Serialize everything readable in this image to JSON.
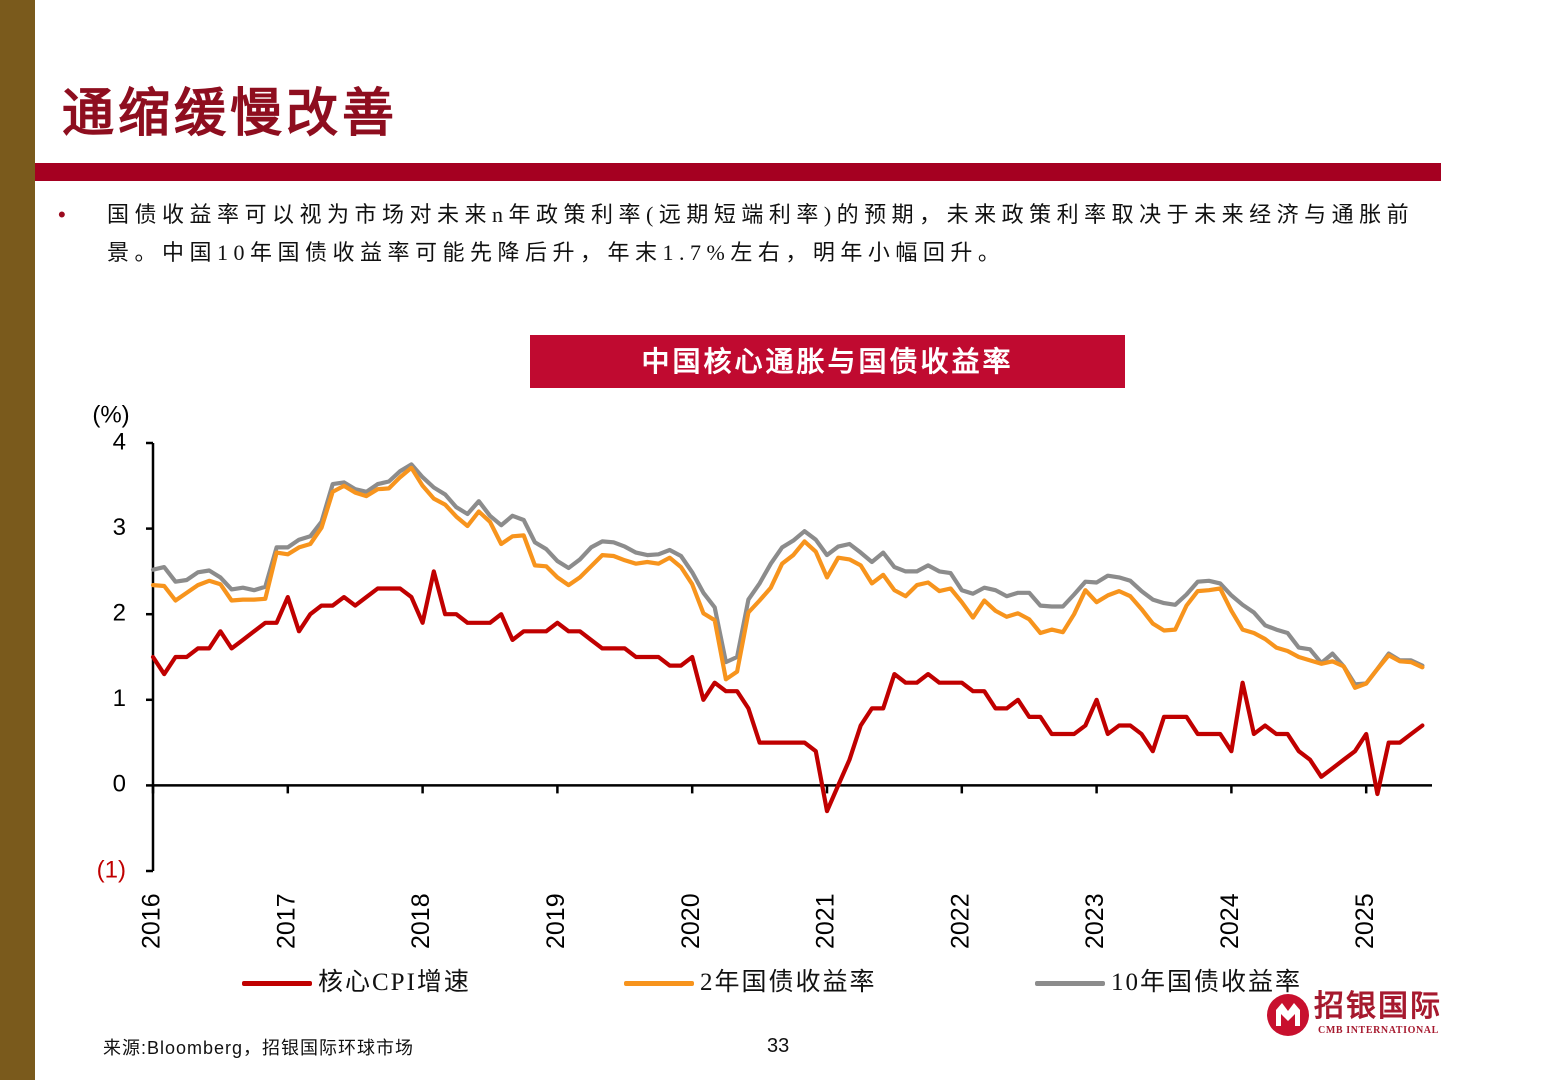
{
  "slide": {
    "title": "通缩缓慢改善",
    "bullet_symbol": "•",
    "bullet_lines": [
      "国债收益率可以视为市场对未来n年政策利率(远期短端利率)的预期，未来政策利率取决于未来经济与通胀前",
      "景。中国10年国债收益率可能先降后升，年末1.7%左右，明年小幅回升。"
    ],
    "source": "来源:Bloomberg，招银国际环球市场",
    "page_number": "33",
    "accent_color": "#A50021",
    "chart_title_color": "#C00A30",
    "side_bar_color": "#7A5A1C"
  },
  "logo": {
    "name": "招银国际",
    "subtitle": "CMB INTERNATIONAL",
    "color": "#C8102E"
  },
  "chart_data": {
    "type": "line",
    "title": "中国核心通胀与国债收益率",
    "ylabel": "(%)",
    "ylim": [
      -1,
      4
    ],
    "y_ticks": [
      4,
      3,
      2,
      1,
      0,
      -1
    ],
    "y_tick_labels": [
      "4",
      "3",
      "2",
      "1",
      "0",
      "(1)"
    ],
    "negative_tick_color": "#C00000",
    "x_ticks": [
      "2016",
      "2017",
      "2018",
      "2019",
      "2020",
      "2021",
      "2022",
      "2023",
      "2024",
      "2025"
    ],
    "grid": false,
    "legend_position": "bottom",
    "x": [
      "2016-01",
      "2016-02",
      "2016-03",
      "2016-04",
      "2016-05",
      "2016-06",
      "2016-07",
      "2016-08",
      "2016-09",
      "2016-10",
      "2016-11",
      "2016-12",
      "2017-01",
      "2017-02",
      "2017-03",
      "2017-04",
      "2017-05",
      "2017-06",
      "2017-07",
      "2017-08",
      "2017-09",
      "2017-10",
      "2017-11",
      "2017-12",
      "2018-01",
      "2018-02",
      "2018-03",
      "2018-04",
      "2018-05",
      "2018-06",
      "2018-07",
      "2018-08",
      "2018-09",
      "2018-10",
      "2018-11",
      "2018-12",
      "2019-01",
      "2019-02",
      "2019-03",
      "2019-04",
      "2019-05",
      "2019-06",
      "2019-07",
      "2019-08",
      "2019-09",
      "2019-10",
      "2019-11",
      "2019-12",
      "2020-01",
      "2020-02",
      "2020-03",
      "2020-04",
      "2020-05",
      "2020-06",
      "2020-07",
      "2020-08",
      "2020-09",
      "2020-10",
      "2020-11",
      "2020-12",
      "2021-01",
      "2021-02",
      "2021-03",
      "2021-04",
      "2021-05",
      "2021-06",
      "2021-07",
      "2021-08",
      "2021-09",
      "2021-10",
      "2021-11",
      "2021-12",
      "2022-01",
      "2022-02",
      "2022-03",
      "2022-04",
      "2022-05",
      "2022-06",
      "2022-07",
      "2022-08",
      "2022-09",
      "2022-10",
      "2022-11",
      "2022-12",
      "2023-01",
      "2023-02",
      "2023-03",
      "2023-04",
      "2023-05",
      "2023-06",
      "2023-07",
      "2023-08",
      "2023-09",
      "2023-10",
      "2023-11",
      "2023-12",
      "2024-01",
      "2024-02",
      "2024-03",
      "2024-04",
      "2024-05",
      "2024-06",
      "2024-07",
      "2024-08",
      "2024-09",
      "2024-10",
      "2024-11",
      "2024-12",
      "2025-01",
      "2025-02",
      "2025-03",
      "2025-04",
      "2025-05",
      "2025-06"
    ],
    "series": [
      {
        "name": "核心CPI增速",
        "color": "#C00000",
        "values": [
          1.5,
          1.3,
          1.5,
          1.5,
          1.6,
          1.6,
          1.8,
          1.6,
          1.7,
          1.8,
          1.9,
          1.9,
          2.2,
          1.8,
          2.0,
          2.1,
          2.1,
          2.2,
          2.1,
          2.2,
          2.3,
          2.3,
          2.3,
          2.2,
          1.9,
          2.5,
          2.0,
          2.0,
          1.9,
          1.9,
          1.9,
          2.0,
          1.7,
          1.8,
          1.8,
          1.8,
          1.9,
          1.8,
          1.8,
          1.7,
          1.6,
          1.6,
          1.6,
          1.5,
          1.5,
          1.5,
          1.4,
          1.4,
          1.5,
          1.0,
          1.2,
          1.1,
          1.1,
          0.9,
          0.5,
          0.5,
          0.5,
          0.5,
          0.5,
          0.4,
          -0.3,
          0.0,
          0.3,
          0.7,
          0.9,
          0.9,
          1.3,
          1.2,
          1.2,
          1.3,
          1.2,
          1.2,
          1.2,
          1.1,
          1.1,
          0.9,
          0.9,
          1.0,
          0.8,
          0.8,
          0.6,
          0.6,
          0.6,
          0.7,
          1.0,
          0.6,
          0.7,
          0.7,
          0.6,
          0.4,
          0.8,
          0.8,
          0.8,
          0.6,
          0.6,
          0.6,
          0.4,
          1.2,
          0.6,
          0.7,
          0.6,
          0.6,
          0.4,
          0.3,
          0.1,
          0.2,
          0.3,
          0.4,
          0.6,
          -0.1,
          0.5,
          0.5,
          0.6,
          0.7
        ]
      },
      {
        "name": "2年国债收益率",
        "color": "#F7941D",
        "values": [
          2.34,
          2.33,
          2.16,
          2.25,
          2.34,
          2.39,
          2.35,
          2.16,
          2.17,
          2.17,
          2.18,
          2.72,
          2.7,
          2.78,
          2.82,
          3.01,
          3.43,
          3.5,
          3.42,
          3.38,
          3.46,
          3.47,
          3.6,
          3.71,
          3.5,
          3.35,
          3.28,
          3.14,
          3.03,
          3.2,
          3.08,
          2.82,
          2.91,
          2.92,
          2.57,
          2.56,
          2.43,
          2.34,
          2.43,
          2.56,
          2.69,
          2.68,
          2.63,
          2.59,
          2.61,
          2.59,
          2.66,
          2.55,
          2.35,
          2.01,
          1.93,
          1.24,
          1.33,
          2.02,
          2.16,
          2.31,
          2.59,
          2.69,
          2.85,
          2.73,
          2.43,
          2.66,
          2.64,
          2.57,
          2.36,
          2.46,
          2.28,
          2.21,
          2.34,
          2.37,
          2.27,
          2.3,
          2.14,
          1.96,
          2.16,
          2.04,
          1.97,
          2.01,
          1.94,
          1.78,
          1.82,
          1.79,
          2.0,
          2.28,
          2.14,
          2.22,
          2.27,
          2.21,
          2.06,
          1.89,
          1.81,
          1.82,
          2.1,
          2.27,
          2.28,
          2.3,
          2.04,
          1.82,
          1.78,
          1.71,
          1.61,
          1.57,
          1.5,
          1.46,
          1.42,
          1.45,
          1.39,
          1.14,
          1.19,
          1.36,
          1.52,
          1.45,
          1.44,
          1.38
        ]
      },
      {
        "name": "10年国债收益率",
        "color": "#8C8C8C",
        "values": [
          2.52,
          2.55,
          2.38,
          2.4,
          2.49,
          2.51,
          2.43,
          2.29,
          2.31,
          2.28,
          2.32,
          2.78,
          2.78,
          2.87,
          2.91,
          3.08,
          3.52,
          3.54,
          3.46,
          3.43,
          3.52,
          3.55,
          3.67,
          3.75,
          3.6,
          3.48,
          3.4,
          3.25,
          3.17,
          3.32,
          3.15,
          3.04,
          3.15,
          3.1,
          2.84,
          2.76,
          2.62,
          2.54,
          2.64,
          2.78,
          2.85,
          2.84,
          2.79,
          2.72,
          2.69,
          2.7,
          2.75,
          2.68,
          2.49,
          2.25,
          2.08,
          1.44,
          1.5,
          2.17,
          2.36,
          2.59,
          2.78,
          2.86,
          2.97,
          2.87,
          2.69,
          2.79,
          2.82,
          2.72,
          2.61,
          2.72,
          2.55,
          2.5,
          2.5,
          2.57,
          2.5,
          2.48,
          2.28,
          2.24,
          2.31,
          2.28,
          2.21,
          2.25,
          2.25,
          2.1,
          2.09,
          2.09,
          2.23,
          2.38,
          2.37,
          2.45,
          2.43,
          2.39,
          2.27,
          2.17,
          2.13,
          2.11,
          2.23,
          2.38,
          2.39,
          2.36,
          2.22,
          2.11,
          2.02,
          1.87,
          1.82,
          1.78,
          1.61,
          1.59,
          1.43,
          1.54,
          1.39,
          1.18,
          1.19,
          1.36,
          1.54,
          1.46,
          1.46,
          1.4
        ]
      }
    ]
  }
}
